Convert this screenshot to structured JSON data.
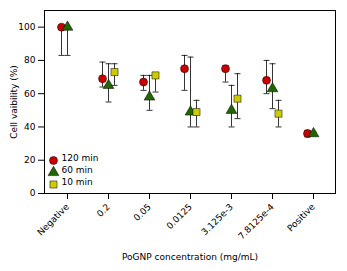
{
  "chart_data": {
    "type": "scatter",
    "categories": [
      "Negative",
      "0.2",
      "0.05",
      "0.0125",
      "3.125e-3",
      "7.8125e-4",
      "Positive"
    ],
    "series": [
      {
        "name": "120 min",
        "color": "#cc0000",
        "marker": "circle",
        "values": [
          100,
          69,
          67,
          75,
          75,
          68,
          36
        ],
        "yerr_low": [
          17,
          5,
          5,
          13,
          8,
          8,
          2
        ],
        "yerr_high": [
          0,
          10,
          4,
          8,
          2,
          12,
          2
        ]
      },
      {
        "name": "60 min",
        "color": "#226600",
        "marker": "triangle",
        "values": [
          100,
          65,
          58,
          49,
          50,
          63,
          36
        ],
        "yerr_low": [
          17,
          10,
          8,
          9,
          10,
          12,
          1
        ],
        "yerr_high": [
          0,
          13,
          13,
          33,
          15,
          15,
          1
        ]
      },
      {
        "name": "10 min",
        "color": "#cccc00",
        "marker": "square",
        "values": [
          null,
          73,
          71,
          49,
          57,
          48,
          null
        ],
        "yerr_low": [
          null,
          8,
          10,
          9,
          12,
          8,
          null
        ],
        "yerr_high": [
          null,
          5,
          0,
          7,
          15,
          8,
          null
        ]
      }
    ],
    "xlabel": "PoGNP concentration (mg/mL)",
    "ylabel": "Cell vaibility (%)",
    "ylim": [
      0,
      110
    ],
    "yticks": [
      0,
      20,
      40,
      60,
      80,
      100
    ],
    "legend": "lower left",
    "grid": false
  }
}
